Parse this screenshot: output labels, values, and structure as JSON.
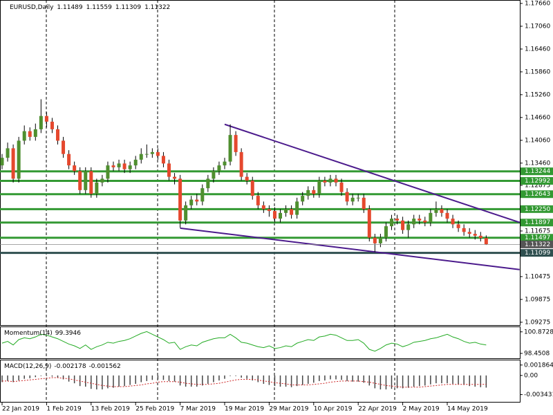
{
  "chart_data": [
    {
      "type": "candlestick",
      "title": "EURUSD,Daily",
      "dates": [
        "22 Jan 2019",
        null,
        null,
        null,
        null,
        null,
        null,
        null,
        "1 Feb 2019",
        null,
        null,
        null,
        null,
        null,
        null,
        null,
        "13 Feb 2019",
        null,
        null,
        null,
        null,
        null,
        null,
        null,
        "25 Feb 2019",
        null,
        null,
        null,
        null,
        null,
        null,
        null,
        "7 Mar 2019",
        null,
        null,
        null,
        null,
        null,
        null,
        null,
        "19 Mar 2019",
        null,
        null,
        null,
        null,
        null,
        null,
        null,
        "29 Mar 2019",
        null,
        null,
        null,
        null,
        null,
        null,
        null,
        "10 Apr 2019",
        null,
        null,
        null,
        null,
        null,
        null,
        null,
        "22 Apr 2019",
        null,
        null,
        null,
        null,
        null,
        null,
        null,
        "2 May 2019",
        null,
        null,
        null,
        null,
        null,
        null,
        null,
        "14 May 2019",
        null,
        null,
        null,
        null,
        null,
        null,
        null
      ],
      "open": [
        1.134,
        1.136,
        1.1385,
        1.1305,
        1.1405,
        1.143,
        1.1415,
        1.1435,
        1.147,
        1.1455,
        1.1435,
        1.1405,
        1.137,
        1.134,
        1.1325,
        1.1275,
        1.1325,
        1.1265,
        1.1295,
        1.1305,
        1.134,
        1.1335,
        1.1345,
        1.133,
        1.134,
        1.1355,
        1.137,
        1.137,
        1.1375,
        1.1365,
        1.1345,
        1.131,
        1.1305,
        1.1195,
        1.1235,
        1.125,
        1.1245,
        1.128,
        1.1305,
        1.1325,
        1.134,
        1.135,
        1.142,
        1.1375,
        1.131,
        1.13,
        1.126,
        1.1235,
        1.1225,
        1.122,
        1.12,
        1.1215,
        1.1225,
        1.121,
        1.1245,
        1.126,
        1.1275,
        1.1265,
        1.13,
        1.1295,
        1.1305,
        1.1295,
        1.127,
        1.1245,
        1.1255,
        1.1255,
        1.1225,
        1.115,
        1.1135,
        1.115,
        1.118,
        1.12,
        1.1195,
        1.117,
        1.1185,
        1.12,
        1.1195,
        1.119,
        1.1215,
        1.1225,
        1.1215,
        1.12,
        1.1185,
        1.1175,
        1.1165,
        1.116,
        1.1155,
        1.11489
      ],
      "high": [
        1.137,
        1.14,
        1.1395,
        1.1415,
        1.1445,
        1.144,
        1.145,
        1.1514,
        1.148,
        1.1465,
        1.1445,
        1.1415,
        1.138,
        1.135,
        1.1335,
        1.1335,
        1.1335,
        1.1305,
        1.1315,
        1.135,
        1.135,
        1.1355,
        1.1355,
        1.135,
        1.1365,
        1.1385,
        1.1395,
        1.1385,
        1.1385,
        1.1375,
        1.1355,
        1.132,
        1.1315,
        1.1245,
        1.126,
        1.1265,
        1.129,
        1.1315,
        1.1335,
        1.135,
        1.136,
        1.1448,
        1.143,
        1.1385,
        1.132,
        1.131,
        1.127,
        1.1245,
        1.1235,
        1.123,
        1.1225,
        1.1235,
        1.1235,
        1.1255,
        1.127,
        1.1285,
        1.1285,
        1.131,
        1.131,
        1.1315,
        1.1315,
        1.1305,
        1.128,
        1.1265,
        1.1265,
        1.1265,
        1.1235,
        1.116,
        1.116,
        1.119,
        1.121,
        1.121,
        1.1205,
        1.1195,
        1.121,
        1.121,
        1.1205,
        1.1225,
        1.1245,
        1.1235,
        1.1225,
        1.121,
        1.1195,
        1.1185,
        1.1175,
        1.117,
        1.1165,
        1.11559
      ],
      "low": [
        1.133,
        1.135,
        1.1295,
        1.1295,
        1.1395,
        1.1405,
        1.1405,
        1.1425,
        1.144,
        1.1425,
        1.1395,
        1.136,
        1.133,
        1.1315,
        1.1265,
        1.1265,
        1.1255,
        1.1255,
        1.1285,
        1.1295,
        1.1325,
        1.1325,
        1.132,
        1.132,
        1.133,
        1.1345,
        1.136,
        1.136,
        1.1355,
        1.1335,
        1.13,
        1.129,
        1.1176,
        1.1185,
        1.1225,
        1.1235,
        1.1235,
        1.127,
        1.1295,
        1.1315,
        1.133,
        1.134,
        1.1365,
        1.13,
        1.129,
        1.125,
        1.1225,
        1.1215,
        1.1205,
        1.119,
        1.119,
        1.1205,
        1.12,
        1.12,
        1.1235,
        1.125,
        1.1255,
        1.1255,
        1.1285,
        1.1285,
        1.1285,
        1.126,
        1.1235,
        1.1235,
        1.1245,
        1.1215,
        1.114,
        1.1112,
        1.1125,
        1.114,
        1.117,
        1.1185,
        1.116,
        1.115,
        1.1175,
        1.1185,
        1.118,
        1.118,
        1.1205,
        1.1205,
        1.119,
        1.1175,
        1.1165,
        1.1155,
        1.115,
        1.1145,
        1.114,
        1.11309
      ],
      "close": [
        1.136,
        1.1385,
        1.1305,
        1.1405,
        1.143,
        1.1415,
        1.1435,
        1.147,
        1.1455,
        1.1435,
        1.1405,
        1.137,
        1.134,
        1.1325,
        1.1275,
        1.1325,
        1.1265,
        1.1295,
        1.1305,
        1.134,
        1.1335,
        1.1345,
        1.133,
        1.134,
        1.1355,
        1.137,
        1.137,
        1.1375,
        1.1365,
        1.1345,
        1.131,
        1.1305,
        1.1195,
        1.1235,
        1.125,
        1.1245,
        1.128,
        1.1305,
        1.1325,
        1.134,
        1.135,
        1.142,
        1.1375,
        1.131,
        1.13,
        1.126,
        1.1235,
        1.1225,
        1.122,
        1.12,
        1.1215,
        1.1225,
        1.121,
        1.1245,
        1.126,
        1.1275,
        1.1265,
        1.13,
        1.1295,
        1.1305,
        1.1295,
        1.127,
        1.1245,
        1.1255,
        1.1255,
        1.1225,
        1.115,
        1.1135,
        1.115,
        1.118,
        1.12,
        1.1195,
        1.117,
        1.1185,
        1.12,
        1.1195,
        1.119,
        1.1215,
        1.1225,
        1.1215,
        1.12,
        1.1185,
        1.1175,
        1.1165,
        1.116,
        1.1155,
        1.11489,
        1.11322
      ],
      "up_color": "#4f8f2f",
      "down_color": "#e5482e",
      "ylim": [
        1.092,
        1.1775
      ],
      "yticks": [
        {
          "value": 1.1766,
          "label": "1.17660"
        },
        {
          "value": 1.1706,
          "label": "1.17060"
        },
        {
          "value": 1.1646,
          "label": "1.16460"
        },
        {
          "value": 1.1586,
          "label": "1.15860"
        },
        {
          "value": 1.1526,
          "label": "1.15260"
        },
        {
          "value": 1.1466,
          "label": "1.14660"
        },
        {
          "value": 1.1406,
          "label": "1.14060"
        },
        {
          "value": 1.1346,
          "label": "1.13460"
        },
        1.12875,
        1.11675,
        1.10475,
        1.09875,
        1.09275
      ],
      "levels": [
        1.13244,
        1.12992,
        1.12643,
        {
          "value": 1.1225,
          "label": "1.12250"
        },
        1.11897,
        1.11497,
        1.11099
      ],
      "level_colors": [
        "#339933",
        "#339933",
        "#339933",
        "#339933",
        "#339933",
        "#339933",
        "#2f4f4f"
      ],
      "trendlines": [
        {
          "x": [
            40,
            93
          ],
          "y": [
            1.1448,
            1.119
          ]
        },
        {
          "x": [
            32,
            93
          ],
          "y": [
            1.1175,
            1.1066
          ]
        }
      ],
      "trendline_color": "#4b1a8c"
    },
    {
      "type": "line",
      "title": "Momentum(14)",
      "color": "#22aa22",
      "values": [
        99.6,
        99.8,
        99.4,
        100.0,
        100.2,
        100.1,
        100.3,
        100.6,
        100.5,
        100.3,
        100.1,
        99.8,
        99.5,
        99.3,
        99.0,
        99.4,
        98.9,
        99.2,
        99.4,
        99.7,
        99.6,
        99.8,
        99.9,
        100.1,
        100.4,
        100.7,
        100.9,
        100.6,
        100.3,
        100.0,
        99.6,
        99.7,
        98.9,
        99.2,
        99.4,
        99.3,
        99.7,
        99.9,
        100.1,
        100.2,
        100.2,
        100.6,
        100.2,
        99.7,
        99.6,
        99.4,
        99.2,
        99.1,
        99.3,
        99.0,
        99.1,
        99.3,
        99.2,
        99.6,
        99.8,
        100.0,
        99.9,
        100.3,
        100.4,
        100.6,
        100.5,
        100.2,
        99.9,
        99.9,
        100.0,
        99.6,
        98.9,
        98.7,
        99.0,
        99.4,
        99.6,
        99.5,
        99.2,
        99.4,
        99.7,
        99.8,
        99.9,
        100.1,
        100.2,
        100.4,
        100.6,
        100.3,
        100.1,
        99.8,
        99.6,
        99.7,
        99.5,
        99.3946
      ],
      "ylim": [
        97.9,
        101.4
      ],
      "yticks": [
        100.8728,
        98.4508
      ]
    },
    {
      "type": "macd",
      "title": "MACD(12,26,9)",
      "color": "#444444",
      "signal_color": "#cc2222",
      "histogram": [
        -0.0012,
        -0.001,
        -0.0012,
        -0.0009,
        -0.0006,
        -0.0005,
        -0.0003,
        -0.0001,
        -0.0001,
        -0.0002,
        -0.0004,
        -0.0007,
        -0.0011,
        -0.0014,
        -0.0019,
        -0.002,
        -0.0024,
        -0.0025,
        -0.0025,
        -0.0023,
        -0.0022,
        -0.002,
        -0.0019,
        -0.0017,
        -0.0015,
        -0.0012,
        -0.001,
        -0.0008,
        -0.0007,
        -0.0008,
        -0.001,
        -0.0011,
        -0.0018,
        -0.002,
        -0.002,
        -0.002,
        -0.0018,
        -0.0015,
        -0.0012,
        -0.0009,
        -0.0006,
        -0.0001,
        -0.0001,
        -0.0004,
        -0.0006,
        -0.0009,
        -0.0012,
        -0.0015,
        -0.0017,
        -0.0019,
        -0.002,
        -0.002,
        -0.0021,
        -0.0019,
        -0.0017,
        -0.0015,
        -0.0013,
        -0.001,
        -0.0009,
        -0.0007,
        -0.0007,
        -0.0008,
        -0.001,
        -0.0011,
        -0.0011,
        -0.0013,
        -0.0018,
        -0.0023,
        -0.0025,
        -0.0025,
        -0.0024,
        -0.0023,
        -0.0023,
        -0.0022,
        -0.002,
        -0.0019,
        -0.0018,
        -0.0016,
        -0.0014,
        -0.0014,
        -0.0014,
        -0.0015,
        -0.0016,
        -0.0017,
        -0.0019,
        -0.002,
        -0.0021,
        -0.002178
      ],
      "signal": [
        -0.001,
        -0.001,
        -0.0011,
        -0.001,
        -0.0009,
        -0.0008,
        -0.0007,
        -0.0006,
        -0.0005,
        -0.0004,
        -0.0004,
        -0.0005,
        -0.0006,
        -0.0008,
        -0.001,
        -0.0012,
        -0.0014,
        -0.0016,
        -0.0018,
        -0.0019,
        -0.002,
        -0.002,
        -0.002,
        -0.0019,
        -0.0018,
        -0.0017,
        -0.0015,
        -0.0014,
        -0.0012,
        -0.0011,
        -0.0011,
        -0.0011,
        -0.0012,
        -0.0014,
        -0.0015,
        -0.0016,
        -0.0016,
        -0.0016,
        -0.0015,
        -0.0014,
        -0.0012,
        -0.001,
        -0.0008,
        -0.0007,
        -0.0007,
        -0.0007,
        -0.0008,
        -0.001,
        -0.0011,
        -0.0013,
        -0.0014,
        -0.0015,
        -0.0017,
        -0.0017,
        -0.0017,
        -0.0017,
        -0.0016,
        -0.0015,
        -0.0014,
        -0.0012,
        -0.0011,
        -0.001,
        -0.001,
        -0.001,
        -0.001,
        -0.0011,
        -0.0012,
        -0.0014,
        -0.0016,
        -0.0018,
        -0.0019,
        -0.002,
        -0.0021,
        -0.0021,
        -0.0021,
        -0.0021,
        -0.002,
        -0.0019,
        -0.0018,
        -0.0017,
        -0.0016,
        -0.0016,
        -0.0016,
        -0.0016,
        -0.0016,
        -0.0016,
        -0.0016,
        -0.001562
      ],
      "ylim": [
        -0.0046,
        0.0027
      ],
      "yticks": [
        0.001864,
        {
          "value": 0,
          "label": "0.00"
        },
        -0.003431
      ]
    }
  ]
}
